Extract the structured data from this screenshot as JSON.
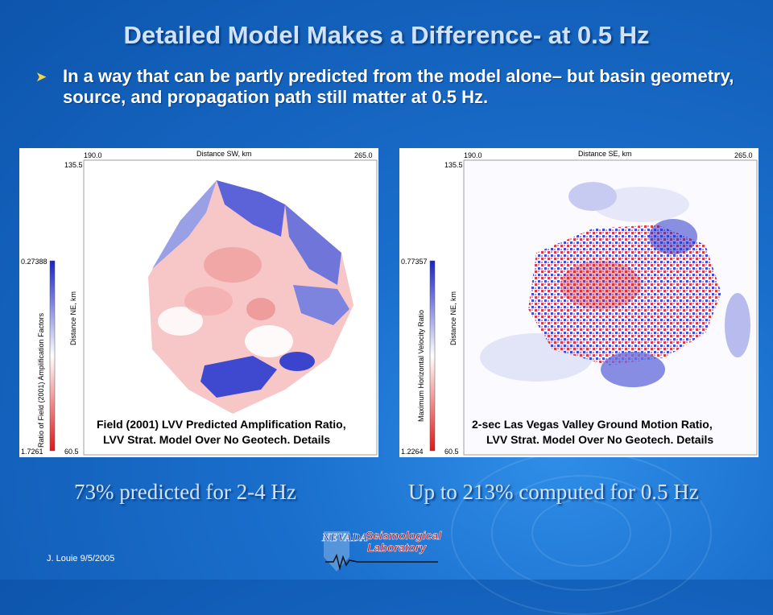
{
  "title": "Detailed Model Makes a Difference- at 0.5 Hz",
  "bullet": {
    "icon": "arrowhead-bullet-icon",
    "text": "In a way that can be partly predicted from the model alone– but basin geometry, source, and propagation path still matter at 0.5 Hz."
  },
  "panels": [
    {
      "x_axis_label": "Distance SW, km",
      "x_start": "190.0",
      "x_end": "265.0",
      "y_axis_label": "Distance NE, km",
      "y_top": "135.5",
      "y_bottom": "60.5",
      "colorbar_label": "Ratio of Field (2001) Amplification Factors",
      "colorbar_top": "0.27388",
      "colorbar_bottom": "1.7261",
      "caption_line1": "Field (2001) LVV Predicted Amplification Ratio,",
      "caption_line2": "LVV Strat. Model Over No Geotech. Details"
    },
    {
      "x_axis_label": "Distance SE, km",
      "x_start": "190.0",
      "x_end": "265.0",
      "y_axis_label": "Distance NE, km",
      "y_top": "135.5",
      "y_bottom": "60.5",
      "colorbar_label": "Maximum Horizontal Velocity Ratio",
      "colorbar_top": "0.77357",
      "colorbar_bottom": "1.2264",
      "caption_line1": "2-sec Las Vegas Valley Ground Motion Ratio,",
      "caption_line2": "LVV Strat. Model Over No Geotech. Details"
    }
  ],
  "captions": {
    "left": "73% predicted for 2-4 Hz",
    "right": "Up to 213% computed for 0.5 Hz"
  },
  "footer": "J. Louie  9/5/2005",
  "logo": {
    "word1": "NEVADA",
    "word2": "Seismological",
    "word3": "Laboratory"
  },
  "colors": {
    "background": "#1565c0",
    "title": "#cfe3ff",
    "bullet": "#f3d34a",
    "positive": "#d81b1b",
    "negative": "#2233cc"
  }
}
